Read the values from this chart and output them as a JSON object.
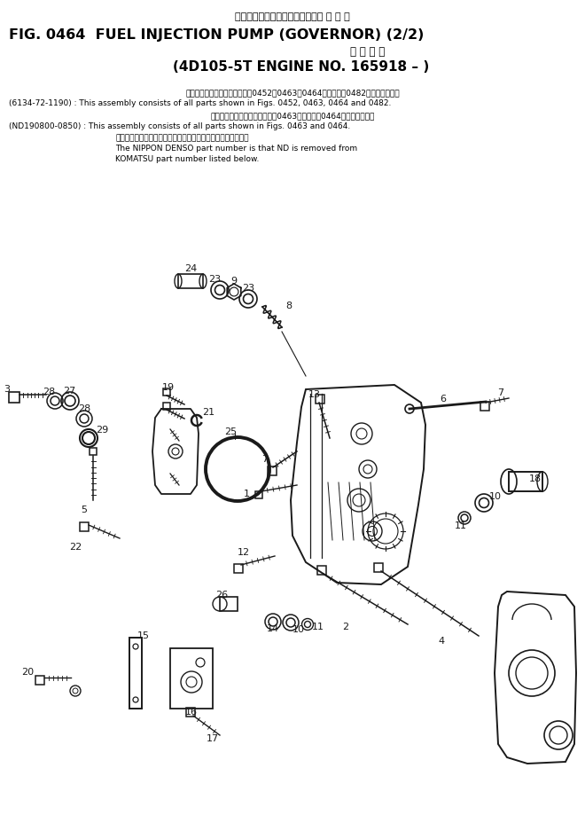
{
  "title_jp": "ファエルインジェクションポンプ ガ バ ナ",
  "title_en": "FIG. 0464  FUEL INJECTION PUMP (GOVERNOR) (2/2)",
  "subtitle_jp": "適 用 号 機",
  "subtitle_en": "(4D105-5T ENGINE NO. 165918 – )",
  "note1_jp": "このアセンブリの構成部品は第0452，0463，0464図および第0482図を含みます。",
  "note1_code": "(6134-72-1190)",
  "note1_en": ": This assembly consists of all parts shown in Figs. 0452, 0463, 0464 and 0482.",
  "note2_jp": "このアセンブリの構成部品は第0463図および第0464図を含みます。",
  "note2_code": "(ND190800-0850)",
  "note2_en": ": This assembly consists of all parts shown in Figs. 0463 and 0464.",
  "note3_jp": "品番のメーカー記号ケデを使いたものが日本電装の品番です。",
  "note3_en1": "The NIPPON DENSO part number is that ND is removed from",
  "note3_en2": "KOMATSU part number listed below.",
  "bg_color": "#ffffff",
  "text_color": "#000000",
  "diagram_color": "#1a1a1a"
}
